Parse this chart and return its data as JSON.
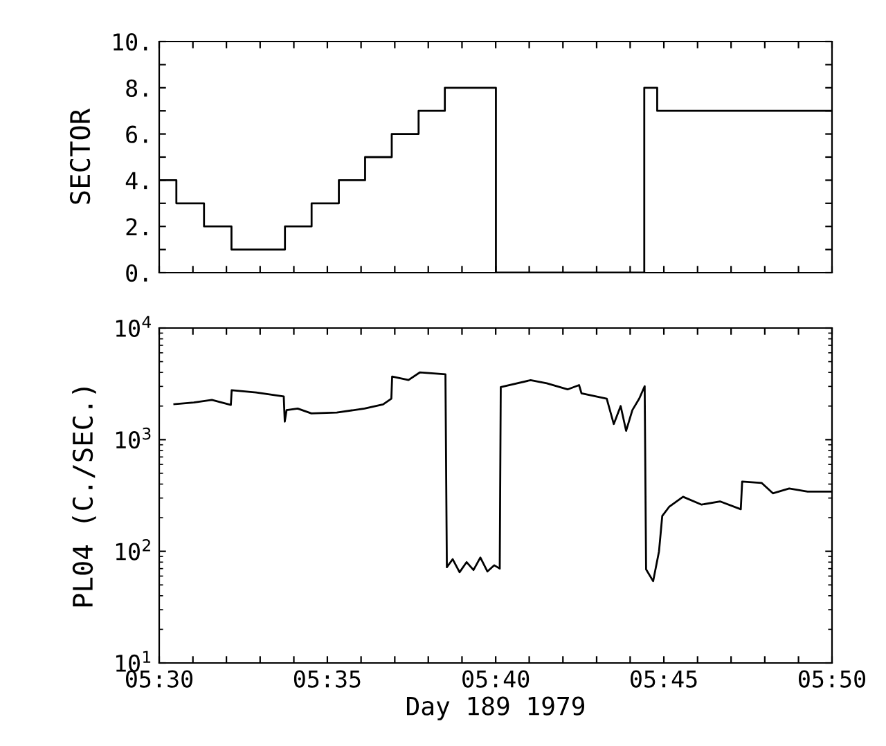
{
  "chart_data": [
    {
      "type": "step",
      "ylabel": "SECTOR",
      "tick_labels": "y",
      "grid": false,
      "legend": false,
      "xlim": [
        5.5,
        5.8333
      ],
      "xticks": [
        {
          "value": 5.5,
          "label": null
        },
        {
          "value": 5.5167,
          "label": null
        },
        {
          "value": 5.5333,
          "label": null
        },
        {
          "value": 5.55,
          "label": null
        },
        {
          "value": 5.5667,
          "label": null
        },
        {
          "value": 5.5833,
          "label": null
        },
        {
          "value": 5.6,
          "label": null
        },
        {
          "value": 5.6167,
          "label": null
        },
        {
          "value": 5.6333,
          "label": null
        },
        {
          "value": 5.65,
          "label": null
        },
        {
          "value": 5.6667,
          "label": null
        },
        {
          "value": 5.6833,
          "label": null
        },
        {
          "value": 5.7,
          "label": null
        },
        {
          "value": 5.7167,
          "label": null
        },
        {
          "value": 5.7333,
          "label": null
        },
        {
          "value": 5.75,
          "label": null
        },
        {
          "value": 5.7667,
          "label": null
        },
        {
          "value": 5.7833,
          "label": null
        },
        {
          "value": 5.8,
          "label": null
        },
        {
          "value": 5.8167,
          "label": null
        },
        {
          "value": 5.8333,
          "label": null
        }
      ],
      "ylim": [
        0,
        10
      ],
      "yticks": [
        {
          "value": 0,
          "label": "0."
        },
        {
          "value": 1,
          "label": null
        },
        {
          "value": 2,
          "label": "2."
        },
        {
          "value": 3,
          "label": null
        },
        {
          "value": 4,
          "label": "4."
        },
        {
          "value": 5,
          "label": null
        },
        {
          "value": 6,
          "label": "6."
        },
        {
          "value": 7,
          "label": null
        },
        {
          "value": 8,
          "label": "8."
        },
        {
          "value": 9,
          "label": null
        },
        {
          "value": 10,
          "label": "10."
        }
      ],
      "series": [
        {
          "color": "#000000",
          "x": [
            5.5,
            5.5085,
            5.5222,
            5.5358,
            5.5623,
            5.5755,
            5.589,
            5.602,
            5.6152,
            5.6285,
            5.6415,
            5.6668,
            5.7403,
            5.7467,
            5.8333
          ],
          "values": [
            4,
            3,
            2,
            1,
            2,
            3,
            4,
            5,
            6,
            7,
            8,
            0,
            8,
            7,
            7
          ]
        }
      ]
    },
    {
      "type": "line",
      "ylabel": "PL04 (C./SEC.)",
      "xlabel": "Day 189 1979",
      "log": "y",
      "grid": false,
      "legend": false,
      "xlim": [
        5.5,
        5.8333
      ],
      "xticks": [
        {
          "value": 5.5,
          "label": "05:30"
        },
        {
          "value": 5.5167,
          "label": null
        },
        {
          "value": 5.5333,
          "label": null
        },
        {
          "value": 5.55,
          "label": null
        },
        {
          "value": 5.5667,
          "label": null
        },
        {
          "value": 5.5833,
          "label": "05:35"
        },
        {
          "value": 5.6,
          "label": null
        },
        {
          "value": 5.6167,
          "label": null
        },
        {
          "value": 5.6333,
          "label": null
        },
        {
          "value": 5.65,
          "label": null
        },
        {
          "value": 5.6667,
          "label": "05:40"
        },
        {
          "value": 5.6833,
          "label": null
        },
        {
          "value": 5.7,
          "label": null
        },
        {
          "value": 5.7167,
          "label": null
        },
        {
          "value": 5.7333,
          "label": null
        },
        {
          "value": 5.75,
          "label": "05:45"
        },
        {
          "value": 5.7667,
          "label": null
        },
        {
          "value": 5.7833,
          "label": null
        },
        {
          "value": 5.8,
          "label": null
        },
        {
          "value": 5.8167,
          "label": null
        },
        {
          "value": 5.8333,
          "label": "05:50"
        }
      ],
      "ylim": [
        10,
        10000
      ],
      "yticks": [
        {
          "value": 10,
          "label": "10$^{1}$"
        },
        {
          "value": 100,
          "label": "10$^{2}$"
        },
        {
          "value": 1000,
          "label": "10$^{3}$"
        },
        {
          "value": 10000,
          "label": "10$^{4}$"
        }
      ],
      "series": [
        {
          "color": "#000000",
          "x": [
            5.5075,
            5.5171,
            5.5261,
            5.5355,
            5.5359,
            5.548,
            5.5617,
            5.5622,
            5.5631,
            5.5686,
            5.5754,
            5.588,
            5.6017,
            5.6109,
            5.615,
            5.6154,
            5.6235,
            5.6292,
            5.6418,
            5.6425,
            5.6454,
            5.6488,
            5.6523,
            5.6557,
            5.6591,
            5.6626,
            5.666,
            5.6687,
            5.6692,
            5.684,
            5.692,
            5.7023,
            5.708,
            5.7092,
            5.7217,
            5.7252,
            5.7286,
            5.7313,
            5.7344,
            5.7378,
            5.7405,
            5.7412,
            5.7447,
            5.7476,
            5.7492,
            5.7526,
            5.7595,
            5.7687,
            5.7778,
            5.7881,
            5.7888,
            5.7984,
            5.804,
            5.8121,
            5.8212,
            5.8331
          ],
          "values": [
            2080,
            2150,
            2270,
            2050,
            2770,
            2650,
            2440,
            1450,
            1840,
            1900,
            1720,
            1750,
            1900,
            2070,
            2330,
            3680,
            3420,
            4010,
            3850,
            72,
            85,
            65,
            80,
            68,
            88,
            66,
            75,
            70,
            2960,
            3410,
            3200,
            2820,
            3080,
            2600,
            2330,
            1380,
            2000,
            1200,
            1840,
            2330,
            3010,
            69,
            54,
            100,
            207,
            250,
            308,
            262,
            280,
            238,
            422,
            410,
            331,
            365,
            343,
            343
          ]
        }
      ]
    }
  ]
}
